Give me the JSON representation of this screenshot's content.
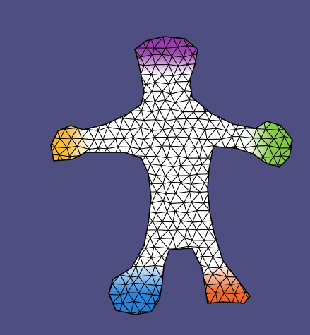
{
  "viewport": {
    "background": "#4f4e80"
  },
  "mesh": {
    "fill": "#ffffff",
    "edge_color": "#000000"
  },
  "regions": [
    {
      "name": "head",
      "color": "#8e2aa3"
    },
    {
      "name": "left-hand",
      "color": "#f7b32a"
    },
    {
      "name": "right-hand",
      "color": "#7cc23a"
    },
    {
      "name": "left-foot",
      "color": "#1877d6"
    },
    {
      "name": "right-foot",
      "color": "#ea5a1c"
    }
  ]
}
